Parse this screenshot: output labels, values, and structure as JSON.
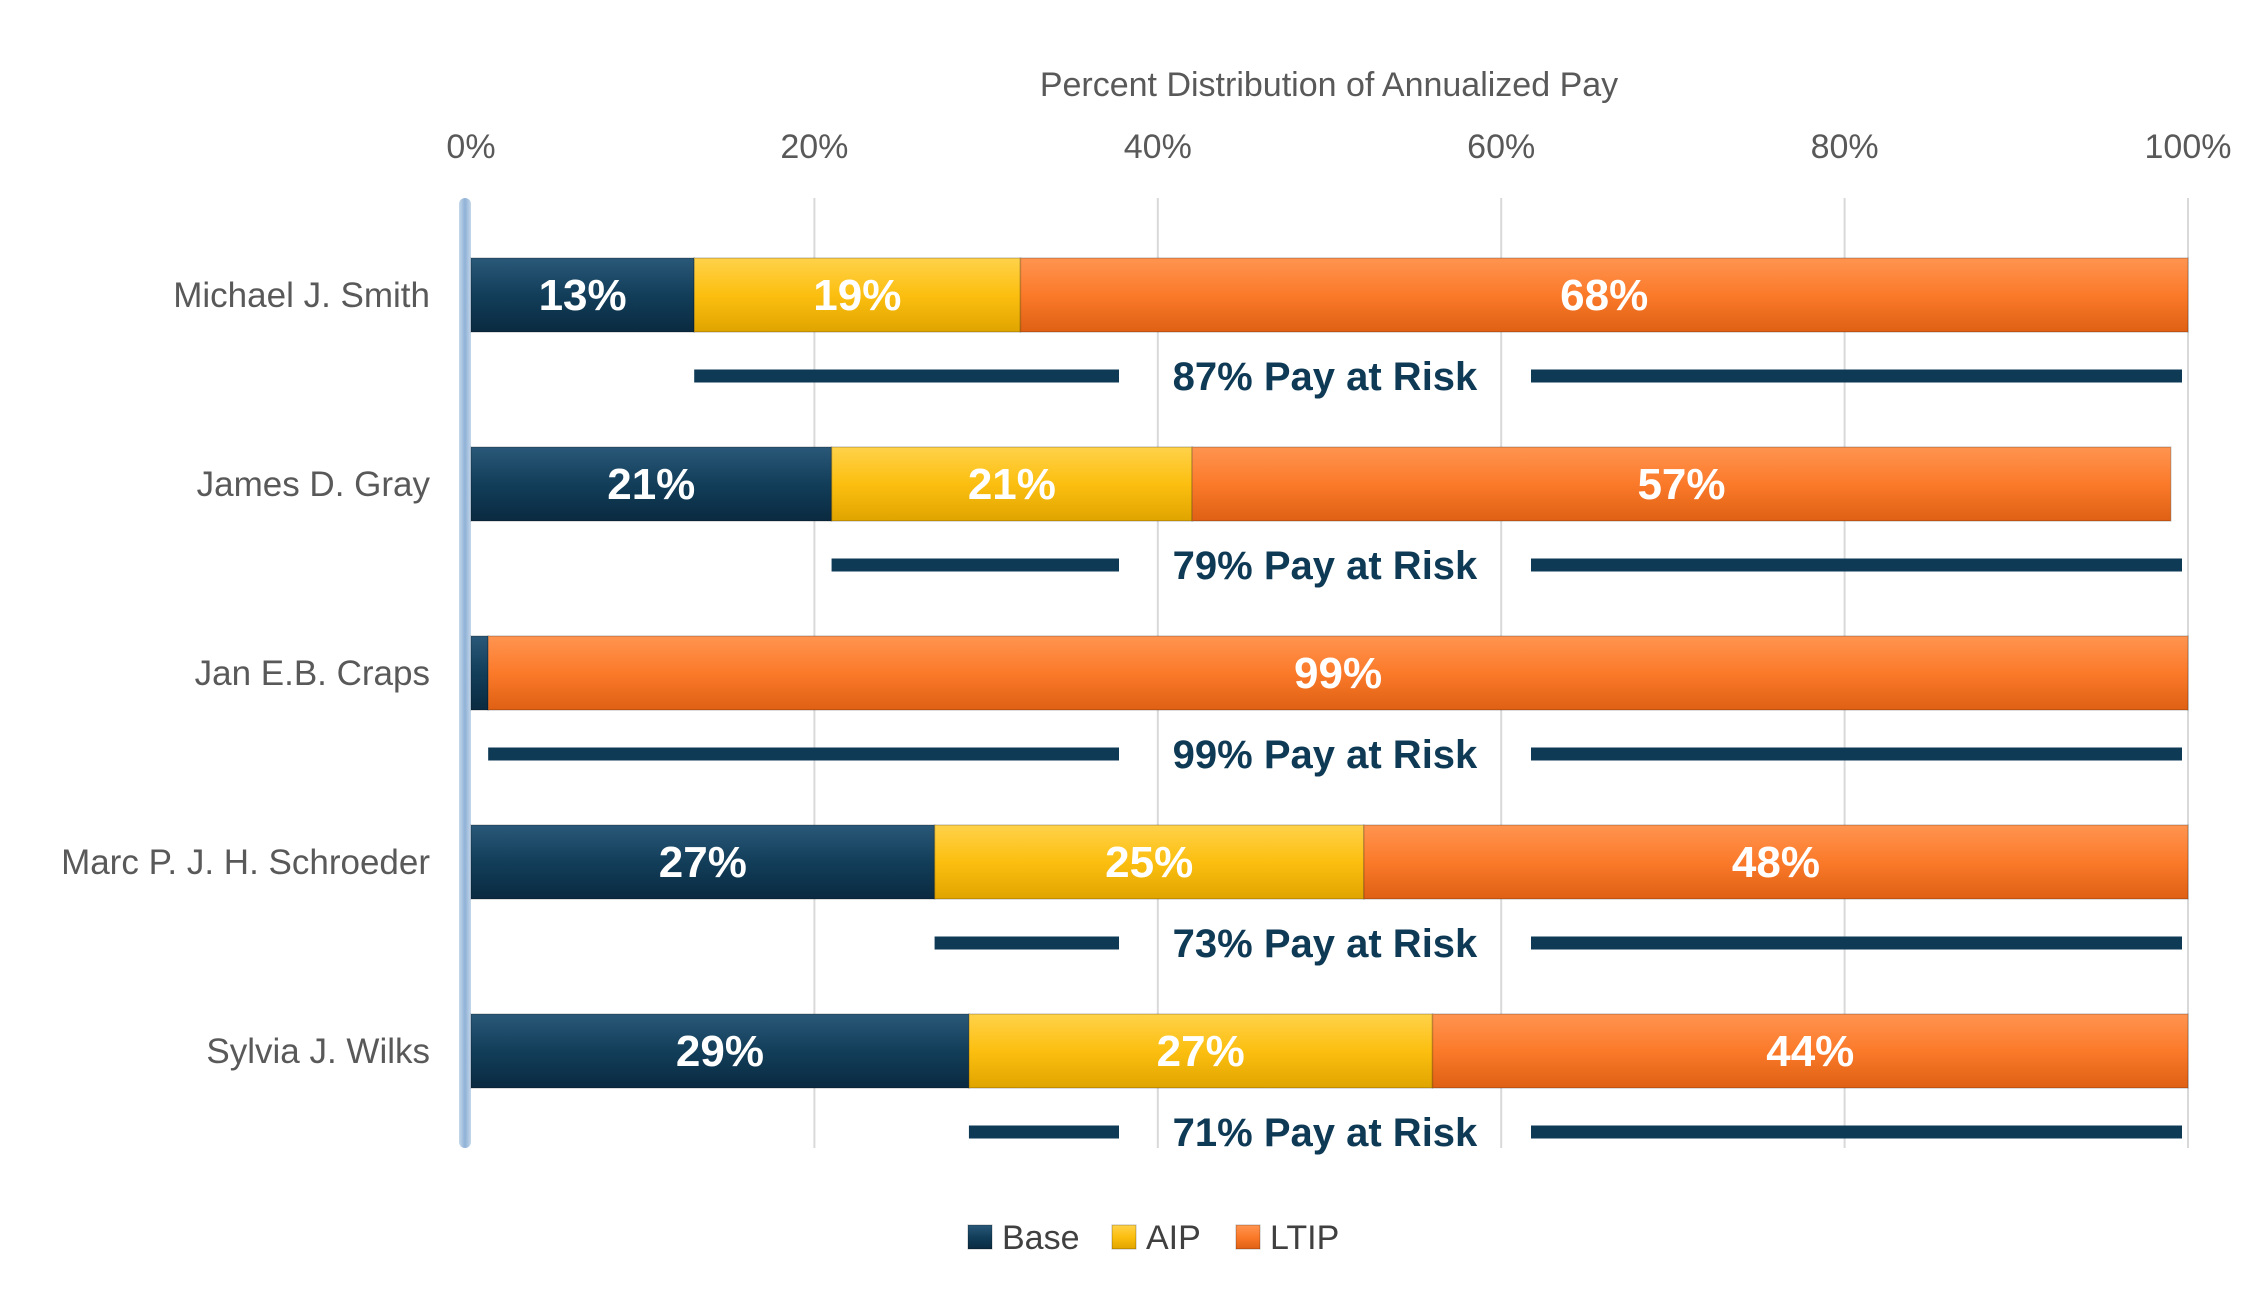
{
  "chart_data": {
    "type": "bar",
    "orientation": "horizontal",
    "stacked": true,
    "title": "Percent Distribution of Annualized Pay",
    "x_ticks": [
      "0%",
      "20%",
      "40%",
      "60%",
      "80%",
      "100%"
    ],
    "xlim": [
      0,
      100
    ],
    "x_axis_position": "top",
    "grid": true,
    "legend_position": "bottom",
    "categories": [
      "Michael J. Smith",
      "James D. Gray",
      "Jan E.B. Craps",
      "Marc P. J. H.  Schroeder",
      "Sylvia J. Wilks"
    ],
    "series": [
      {
        "name": "Base",
        "color": "#123e5a",
        "values": [
          13,
          21,
          1,
          27,
          29
        ],
        "labels": [
          "13%",
          "21%",
          "",
          "27%",
          "29%"
        ]
      },
      {
        "name": "AIP",
        "color": "#fcbf10",
        "values": [
          19,
          21,
          0,
          25,
          27
        ],
        "labels": [
          "19%",
          "21%",
          "",
          "25%",
          "27%"
        ]
      },
      {
        "name": "LTIP",
        "color": "#fb7a2a",
        "values": [
          68,
          57,
          99,
          48,
          44
        ],
        "labels": [
          "68%",
          "57%",
          "99%",
          "48%",
          "44%"
        ]
      }
    ],
    "pay_at_risk": {
      "values": [
        87,
        79,
        99,
        73,
        71
      ],
      "labels": [
        "87% Pay at Risk",
        "79% Pay at Risk",
        "99% Pay at Risk",
        "73% Pay at Risk",
        "71% Pay at Risk"
      ],
      "color": "#0e3a56"
    }
  }
}
